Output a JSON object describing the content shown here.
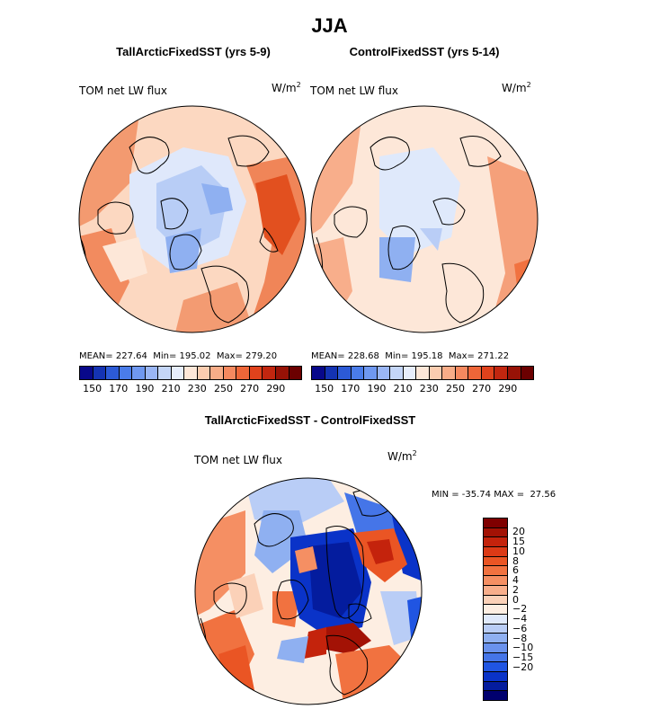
{
  "title": "JJA",
  "panels": {
    "left": {
      "title": "TallArcticFixedSST (yrs 5-9)",
      "field": "TOM net LW flux",
      "units_base": "W/m",
      "units_exp": "2",
      "mean_label": "MEAN=",
      "mean": "227.64",
      "min_label": "Min=",
      "min": "195.02",
      "max_label": "Max=",
      "max": "279.20"
    },
    "right": {
      "title": "ControlFixedSST (yrs 5-14)",
      "field": "TOM net LW flux",
      "units_base": "W/m",
      "units_exp": "2",
      "mean_label": "MEAN=",
      "mean": "228.68",
      "min_label": "Min=",
      "min": "195.18",
      "max_label": "Max=",
      "max": "271.22"
    },
    "diff": {
      "title": "TallArcticFixedSST - ControlFixedSST",
      "field": "TOM net LW flux",
      "units_base": "W/m",
      "units_exp": "2",
      "minmax": "MIN = -35.74 MAX =  27.56"
    }
  },
  "colorbar_top": {
    "ticks": [
      "150",
      "170",
      "190",
      "210",
      "230",
      "250",
      "270",
      "290"
    ],
    "colors": [
      "#08088a",
      "#1433b3",
      "#2c5ad6",
      "#4a7ce9",
      "#6f98f0",
      "#9ab6f5",
      "#c4d6f8",
      "#e7eefc",
      "#fde7d8",
      "#fbcdb0",
      "#f8ad88",
      "#f5895f",
      "#ee6638",
      "#e0421c",
      "#c2260f",
      "#971206",
      "#6b0000"
    ]
  },
  "colorbar_diff": {
    "labels": [
      "20",
      "15",
      "10",
      "8",
      "6",
      "4",
      "2",
      "0",
      "−2",
      "−4",
      "−6",
      "−8",
      "−10",
      "−15",
      "−20"
    ],
    "colors": [
      "#7f0000",
      "#a31205",
      "#c4230c",
      "#dc3a16",
      "#ea5524",
      "#f17240",
      "#f58f63",
      "#f8ae8b",
      "#fbd1b8",
      "#fdeee2",
      "#dfe9fb",
      "#b9cdf6",
      "#8fb0f1",
      "#6a92ed",
      "#4575e8",
      "#2055e2",
      "#0a33c8",
      "#041c9e",
      "#00006e"
    ]
  },
  "chart_data": [
    {
      "type": "heatmap",
      "title": "TallArcticFixedSST (yrs 5-9)",
      "variable": "TOM net LW flux",
      "units": "W/m^2",
      "projection": "north polar stereographic",
      "mean": 227.64,
      "min": 195.02,
      "max": 279.2,
      "colorbar_ticks": [
        150,
        170,
        190,
        210,
        230,
        250,
        270,
        290
      ]
    },
    {
      "type": "heatmap",
      "title": "ControlFixedSST (yrs 5-14)",
      "variable": "TOM net LW flux",
      "units": "W/m^2",
      "projection": "north polar stereographic",
      "mean": 228.68,
      "min": 195.18,
      "max": 271.22,
      "colorbar_ticks": [
        150,
        170,
        190,
        210,
        230,
        250,
        270,
        290
      ]
    },
    {
      "type": "heatmap",
      "title": "TallArcticFixedSST - ControlFixedSST",
      "variable": "TOM net LW flux",
      "units": "W/m^2",
      "projection": "north polar stereographic",
      "min": -35.74,
      "max": 27.56,
      "colorbar_levels": [
        20,
        15,
        10,
        8,
        6,
        4,
        2,
        0,
        -2,
        -4,
        -6,
        -8,
        -10,
        -15,
        -20
      ]
    }
  ]
}
